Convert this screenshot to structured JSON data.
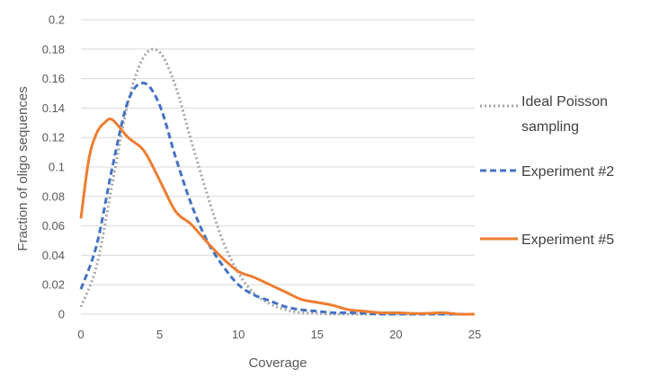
{
  "chart_data": {
    "type": "line",
    "title": "",
    "xlabel": "Coverage",
    "ylabel": "Fraction of oligo sequences",
    "xlim": [
      0,
      25
    ],
    "ylim": [
      0,
      0.2
    ],
    "x_ticks": [
      "0",
      "5",
      "10",
      "15",
      "20",
      "25"
    ],
    "y_ticks": [
      "0",
      "0.02",
      "0.04",
      "0.06",
      "0.08",
      "0.1",
      "0.12",
      "0.14",
      "0.16",
      "0.18",
      "0.2"
    ],
    "grid": "horizontal",
    "legend_position": "right",
    "series": [
      {
        "name": "Ideal Poisson sampling",
        "name_lines": [
          "Ideal Poisson",
          "sampling"
        ],
        "color": "#a5a5a5",
        "style": "dotted",
        "x": [
          0,
          1,
          2,
          3,
          4,
          5,
          6,
          7,
          8,
          9,
          10,
          11,
          12,
          13,
          14,
          15,
          16,
          17,
          18,
          19,
          20,
          21,
          22,
          23,
          24,
          25
        ],
        "y": [
          0.005,
          0.033,
          0.089,
          0.144,
          0.175,
          0.178,
          0.155,
          0.118,
          0.082,
          0.05,
          0.028,
          0.014,
          0.007,
          0.003,
          0.001,
          0.0005,
          0,
          0,
          0,
          0,
          0,
          0,
          0,
          0,
          0,
          0
        ]
      },
      {
        "name": "Experiment #2",
        "color": "#4472c4",
        "style": "dashed",
        "x": [
          0,
          1,
          2,
          3,
          4,
          5,
          6,
          7,
          8,
          9,
          10,
          11,
          12,
          13,
          14,
          15,
          16,
          17,
          18,
          19,
          20,
          21,
          22,
          23,
          24,
          25
        ],
        "y": [
          0.017,
          0.047,
          0.1,
          0.145,
          0.157,
          0.142,
          0.107,
          0.075,
          0.05,
          0.033,
          0.02,
          0.013,
          0.009,
          0.005,
          0.003,
          0.002,
          0.001,
          0.001,
          0.0005,
          0,
          0,
          0,
          0,
          0,
          0,
          0
        ]
      },
      {
        "name": "Experiment #5",
        "color": "#ed7d31",
        "style": "solid",
        "x": [
          0,
          0.5,
          1,
          1.5,
          2,
          3,
          4,
          5,
          6,
          7,
          8,
          9,
          10,
          11,
          12,
          13,
          14,
          15,
          16,
          17,
          18,
          19,
          20,
          21,
          22,
          23,
          24,
          25
        ],
        "y": [
          0.065,
          0.105,
          0.123,
          0.13,
          0.132,
          0.12,
          0.111,
          0.091,
          0.07,
          0.061,
          0.049,
          0.038,
          0.029,
          0.025,
          0.02,
          0.015,
          0.01,
          0.008,
          0.006,
          0.003,
          0.002,
          0.001,
          0.001,
          0.0005,
          0.0005,
          0.001,
          0,
          0
        ]
      }
    ]
  }
}
